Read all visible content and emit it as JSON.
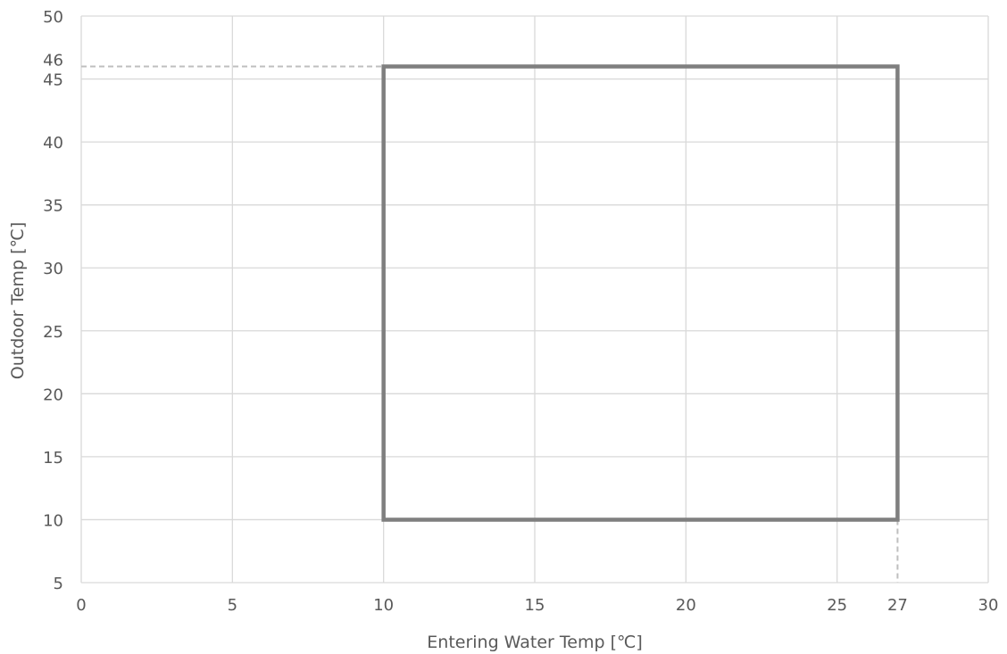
{
  "chart_data": {
    "type": "line",
    "xlabel": "Entering Water Temp [℃]",
    "ylabel": "Outdoor Temp [℃]",
    "xlim": [
      0,
      30
    ],
    "ylim": [
      5,
      50
    ],
    "x_ticks": [
      0,
      5,
      10,
      15,
      20,
      25,
      30
    ],
    "y_ticks": [
      5,
      10,
      15,
      20,
      25,
      30,
      35,
      40,
      45,
      50
    ],
    "extra_x_ticks": [
      27
    ],
    "extra_y_ticks": [
      46
    ],
    "grid": true,
    "series": [
      {
        "points": [
          [
            10,
            10
          ],
          [
            10,
            46
          ],
          [
            27,
            46
          ],
          [
            27,
            10
          ],
          [
            10,
            10
          ]
        ],
        "color": "#7f7f7f"
      }
    ],
    "reference_lines": [
      {
        "points": [
          [
            0,
            46
          ],
          [
            10,
            46
          ]
        ],
        "style": "dashed",
        "color": "#bfbfbf"
      },
      {
        "points": [
          [
            27,
            10
          ],
          [
            27,
            5
          ]
        ],
        "style": "dashed",
        "color": "#bfbfbf"
      }
    ],
    "colors": {
      "grid": "#d9d9d9",
      "axis_text": "#595959"
    }
  }
}
